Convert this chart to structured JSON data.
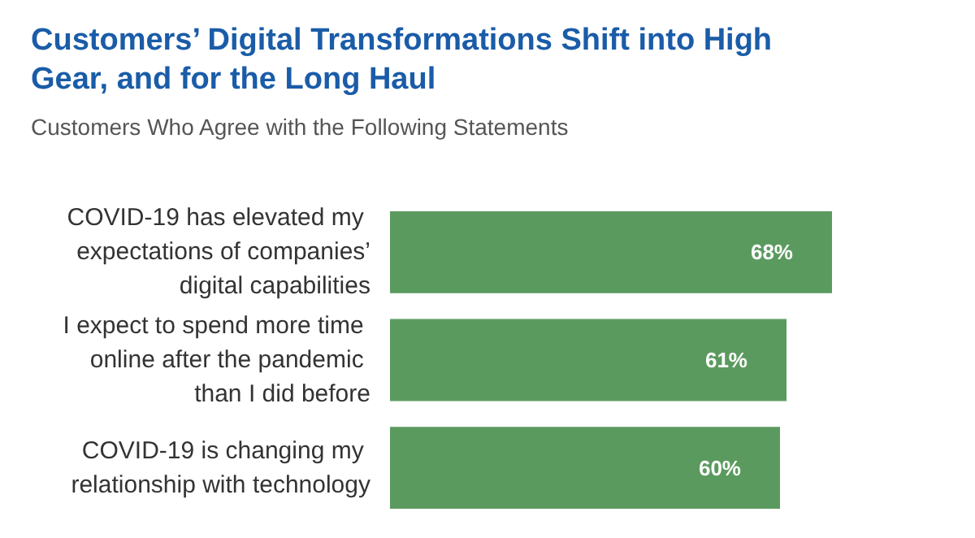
{
  "chart_data": {
    "type": "bar",
    "orientation": "horizontal",
    "title": "Customers’ Digital Transformations Shift into High Gear, and for the Long Haul",
    "subtitle": "Customers Who Agree with the Following Statements",
    "categories": [
      "COVID-19 has elevated my expectations of companies’ digital capabilities",
      "I expect to spend more time online after the pandemic than I did before",
      "COVID-19 is changing my relationship with technology"
    ],
    "values": [
      68,
      61,
      60
    ],
    "value_labels": [
      "68%",
      "61%",
      "60%"
    ],
    "color": "#5b9a5f",
    "tick_labels": "y"
  }
}
